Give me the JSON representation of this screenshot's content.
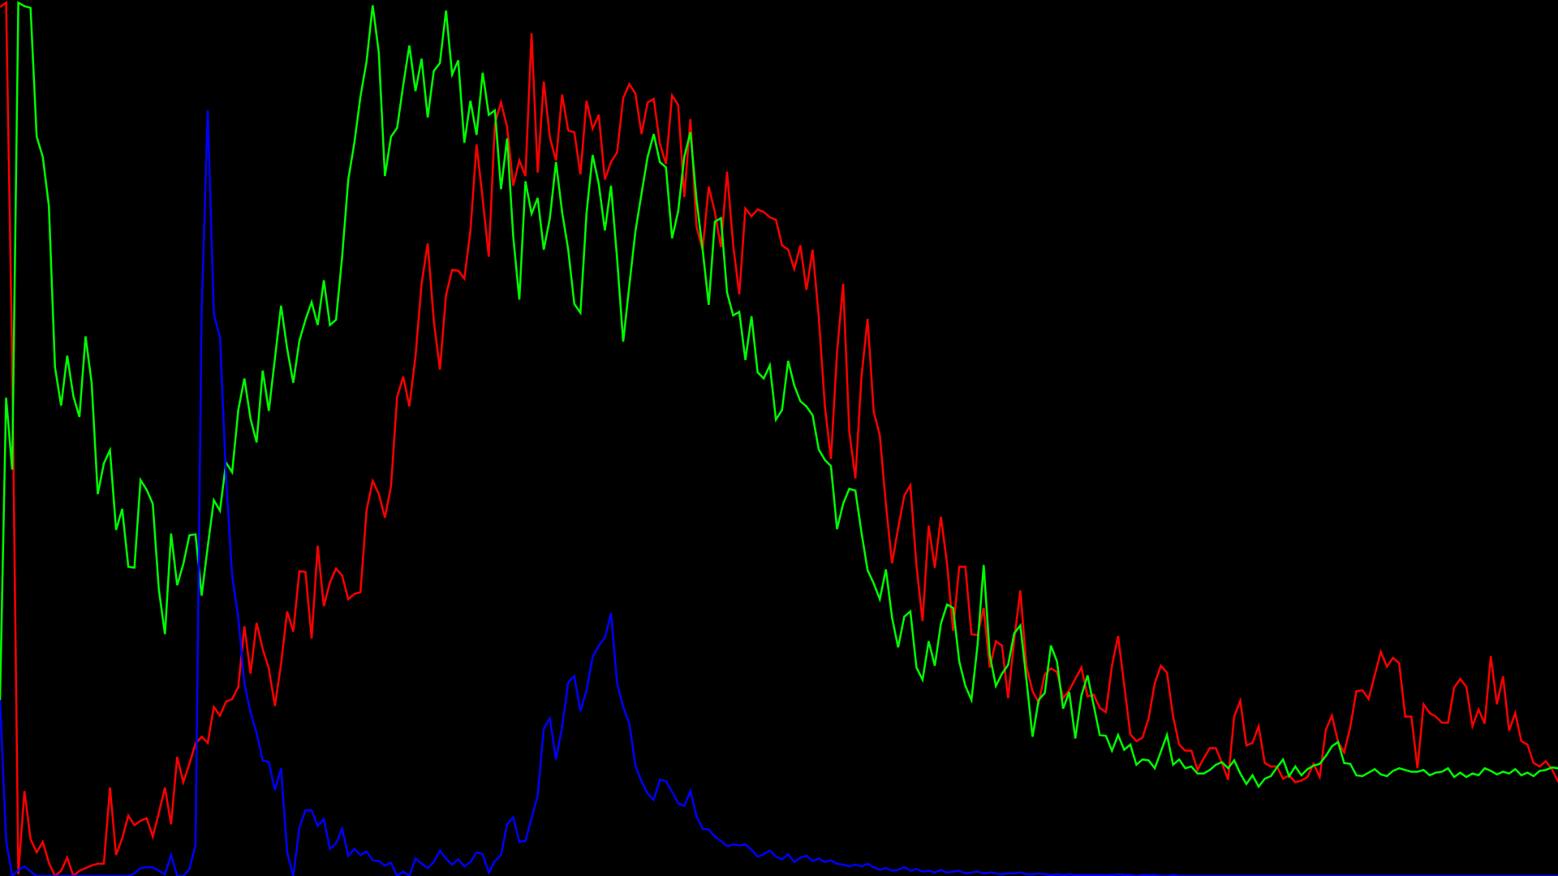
{
  "chart_data": {
    "type": "line",
    "title": "",
    "xlabel": "",
    "ylabel": "",
    "grid": false,
    "legend": "none",
    "background": "#000000",
    "xlim": [
      0,
      255
    ],
    "ylim": [
      0,
      1
    ],
    "x_step": 1,
    "series": [
      {
        "color": "#ff0000",
        "values": [
          0.992,
          0.997,
          0.588,
          0.002,
          0.097,
          0.042,
          0.027,
          0.039,
          0.015,
          0.0,
          0.006,
          0.021,
          0.0,
          0.006,
          0.009,
          0.012,
          0.014,
          0.014,
          0.101,
          0.024,
          0.043,
          0.069,
          0.058,
          0.063,
          0.066,
          0.045,
          0.072,
          0.101,
          0.059,
          0.136,
          0.107,
          0.128,
          0.151,
          0.159,
          0.152,
          0.193,
          0.183,
          0.199,
          0.202,
          0.216,
          0.285,
          0.231,
          0.289,
          0.259,
          0.237,
          0.194,
          0.242,
          0.302,
          0.279,
          0.348,
          0.347,
          0.271,
          0.377,
          0.308,
          0.335,
          0.351,
          0.343,
          0.316,
          0.322,
          0.324,
          0.418,
          0.451,
          0.436,
          0.409,
          0.445,
          0.547,
          0.57,
          0.536,
          0.593,
          0.676,
          0.722,
          0.634,
          0.578,
          0.663,
          0.692,
          0.691,
          0.682,
          0.737,
          0.835,
          0.773,
          0.707,
          0.859,
          0.883,
          0.855,
          0.788,
          0.817,
          0.799,
          0.962,
          0.803,
          0.907,
          0.843,
          0.817,
          0.892,
          0.851,
          0.849,
          0.801,
          0.885,
          0.853,
          0.869,
          0.795,
          0.815,
          0.826,
          0.888,
          0.904,
          0.893,
          0.847,
          0.883,
          0.887,
          0.836,
          0.813,
          0.891,
          0.88,
          0.775,
          0.864,
          0.741,
          0.715,
          0.787,
          0.758,
          0.718,
          0.804,
          0.72,
          0.664,
          0.762,
          0.753,
          0.761,
          0.758,
          0.752,
          0.749,
          0.72,
          0.715,
          0.693,
          0.72,
          0.669,
          0.715,
          0.639,
          0.537,
          0.476,
          0.598,
          0.676,
          0.508,
          0.454,
          0.57,
          0.636,
          0.53,
          0.503,
          0.424,
          0.357,
          0.397,
          0.434,
          0.446,
          0.354,
          0.291,
          0.4,
          0.352,
          0.41,
          0.357,
          0.28,
          0.353,
          0.353,
          0.276,
          0.275,
          0.306,
          0.238,
          0.268,
          0.263,
          0.203,
          0.27,
          0.326,
          0.239,
          0.211,
          0.198,
          0.23,
          0.237,
          0.233,
          0.203,
          0.212,
          0.225,
          0.238,
          0.205,
          0.207,
          0.192,
          0.187,
          0.24,
          0.274,
          0.218,
          0.162,
          0.154,
          0.158,
          0.18,
          0.22,
          0.24,
          0.232,
          0.182,
          0.15,
          0.143,
          0.143,
          0.121,
          0.134,
          0.146,
          0.146,
          0.129,
          0.11,
          0.182,
          0.2,
          0.149,
          0.152,
          0.171,
          0.129,
          0.125,
          0.125,
          0.111,
          0.115,
          0.107,
          0.109,
          0.113,
          0.128,
          0.113,
          0.167,
          0.183,
          0.153,
          0.141,
          0.17,
          0.211,
          0.212,
          0.202,
          0.229,
          0.256,
          0.239,
          0.249,
          0.243,
          0.182,
          0.182,
          0.123,
          0.196,
          0.186,
          0.182,
          0.175,
          0.175,
          0.215,
          0.225,
          0.216,
          0.171,
          0.19,
          0.174,
          0.251,
          0.196,
          0.228,
          0.166,
          0.186,
          0.154,
          0.15,
          0.129,
          0.125,
          0.131,
          0.122,
          0.108,
          0.102,
          0.094,
          0.098,
          0.092,
          0.101,
          0.093,
          0.085,
          0.097,
          0.111,
          0.098,
          0.127,
          0.116,
          0.118,
          0.094,
          0.115,
          0.098,
          0.128,
          0.116,
          0.116,
          0.099,
          0.124,
          0.118,
          0.115,
          0.111,
          0.106,
          0.116,
          0.098,
          0.081,
          0.085,
          0.099,
          0.106,
          0.105,
          0.082,
          0.086,
          0.08,
          0.072,
          0.079,
          0.09,
          0.081,
          0.096,
          0.089,
          0.099,
          0.096,
          0.094
        ]
      },
      {
        "color": "#00ff00",
        "values": [
          0.2,
          0.546,
          0.464,
          0.997,
          0.993,
          0.991,
          0.844,
          0.821,
          0.765,
          0.581,
          0.537,
          0.594,
          0.548,
          0.524,
          0.616,
          0.563,
          0.436,
          0.471,
          0.486,
          0.395,
          0.419,
          0.353,
          0.352,
          0.452,
          0.441,
          0.425,
          0.327,
          0.276,
          0.391,
          0.332,
          0.356,
          0.389,
          0.39,
          0.32,
          0.376,
          0.429,
          0.417,
          0.472,
          0.461,
          0.532,
          0.568,
          0.522,
          0.495,
          0.577,
          0.531,
          0.591,
          0.651,
          0.602,
          0.563,
          0.611,
          0.635,
          0.655,
          0.629,
          0.68,
          0.629,
          0.635,
          0.707,
          0.795,
          0.837,
          0.89,
          0.93,
          0.994,
          0.94,
          0.799,
          0.844,
          0.854,
          0.903,
          0.948,
          0.896,
          0.933,
          0.866,
          0.919,
          0.928,
          0.988,
          0.915,
          0.931,
          0.837,
          0.885,
          0.846,
          0.917,
          0.869,
          0.874,
          0.784,
          0.842,
          0.73,
          0.658,
          0.793,
          0.756,
          0.774,
          0.715,
          0.751,
          0.815,
          0.758,
          0.715,
          0.653,
          0.643,
          0.757,
          0.823,
          0.79,
          0.737,
          0.788,
          0.705,
          0.61,
          0.674,
          0.736,
          0.779,
          0.821,
          0.847,
          0.815,
          0.809,
          0.728,
          0.759,
          0.821,
          0.849,
          0.772,
          0.715,
          0.652,
          0.747,
          0.751,
          0.666,
          0.64,
          0.644,
          0.589,
          0.639,
          0.575,
          0.568,
          0.583,
          0.521,
          0.532,
          0.588,
          0.56,
          0.542,
          0.536,
          0.526,
          0.487,
          0.475,
          0.468,
          0.396,
          0.425,
          0.442,
          0.44,
          0.392,
          0.349,
          0.334,
          0.316,
          0.35,
          0.295,
          0.261,
          0.296,
          0.302,
          0.238,
          0.224,
          0.268,
          0.24,
          0.288,
          0.31,
          0.306,
          0.245,
          0.217,
          0.201,
          0.264,
          0.355,
          0.252,
          0.217,
          0.231,
          0.241,
          0.277,
          0.286,
          0.224,
          0.159,
          0.201,
          0.209,
          0.263,
          0.245,
          0.191,
          0.21,
          0.157,
          0.206,
          0.229,
          0.195,
          0.161,
          0.16,
          0.143,
          0.161,
          0.144,
          0.15,
          0.127,
          0.133,
          0.132,
          0.123,
          0.142,
          0.161,
          0.127,
          0.133,
          0.123,
          0.125,
          0.117,
          0.117,
          0.121,
          0.127,
          0.13,
          0.123,
          0.132,
          0.117,
          0.105,
          0.115,
          0.102,
          0.111,
          0.114,
          0.124,
          0.133,
          0.114,
          0.125,
          0.115,
          0.122,
          0.126,
          0.128,
          0.137,
          0.148,
          0.153,
          0.129,
          0.128,
          0.115,
          0.114,
          0.118,
          0.122,
          0.116,
          0.114,
          0.12,
          0.123,
          0.121,
          0.119,
          0.119,
          0.121,
          0.115,
          0.118,
          0.119,
          0.123,
          0.113,
          0.118,
          0.113,
          0.117,
          0.115,
          0.123,
          0.12,
          0.116,
          0.119,
          0.117,
          0.122,
          0.115,
          0.118,
          0.114,
          0.12,
          0.121,
          0.124,
          0.123,
          0.117,
          0.125,
          0.134,
          0.132,
          0.139,
          0.151,
          0.148,
          0.151,
          0.187,
          0.195,
          0.184,
          0.194,
          0.183,
          0.244,
          0.266,
          0.328,
          0.433,
          0.492,
          0.575,
          0.634,
          0.706,
          0.768,
          0.83,
          0.879,
          0.954,
          0.99,
          0.998,
          0.972,
          0.999,
          0.949
        ]
      },
      {
        "color": "#0000ff",
        "values": [
          0.201,
          0.04,
          0.0,
          0.007,
          0.011,
          0.005,
          0.0,
          0.0,
          0.0,
          0.0,
          0.0,
          0.0,
          0.0,
          0.0,
          0.0,
          0.0,
          0.0,
          0.0,
          0.0,
          0.0,
          0.0,
          0.0,
          0.003,
          0.009,
          0.01,
          0.01,
          0.006,
          0.002,
          0.024,
          0.0,
          0.0,
          0.008,
          0.035,
          0.643,
          0.874,
          0.641,
          0.615,
          0.455,
          0.342,
          0.295,
          0.22,
          0.187,
          0.163,
          0.132,
          0.13,
          0.098,
          0.123,
          0.027,
          0.0,
          0.055,
          0.075,
          0.075,
          0.057,
          0.065,
          0.031,
          0.037,
          0.054,
          0.023,
          0.031,
          0.024,
          0.028,
          0.018,
          0.017,
          0.012,
          0.015,
          0.0,
          0.005,
          0.0,
          0.02,
          0.014,
          0.009,
          0.016,
          0.029,
          0.02,
          0.013,
          0.019,
          0.011,
          0.016,
          0.027,
          0.025,
          0.004,
          0.017,
          0.024,
          0.059,
          0.067,
          0.039,
          0.04,
          0.066,
          0.092,
          0.168,
          0.18,
          0.133,
          0.17,
          0.221,
          0.228,
          0.188,
          0.212,
          0.25,
          0.263,
          0.272,
          0.3,
          0.22,
          0.193,
          0.174,
          0.126,
          0.108,
          0.094,
          0.087,
          0.11,
          0.108,
          0.096,
          0.083,
          0.08,
          0.097,
          0.068,
          0.054,
          0.053,
          0.045,
          0.04,
          0.034,
          0.036,
          0.035,
          0.036,
          0.03,
          0.022,
          0.025,
          0.029,
          0.022,
          0.019,
          0.025,
          0.016,
          0.021,
          0.023,
          0.017,
          0.02,
          0.016,
          0.018,
          0.014,
          0.013,
          0.011,
          0.013,
          0.011,
          0.014,
          0.01,
          0.007,
          0.009,
          0.006,
          0.007,
          0.01,
          0.006,
          0.008,
          0.005,
          0.006,
          0.004,
          0.007,
          0.004,
          0.005,
          0.006,
          0.003,
          0.004,
          0.005,
          0.003,
          0.004,
          0.003,
          0.002,
          0.003,
          0.003,
          0.004,
          0.002,
          0.002,
          0.003,
          0.002,
          0.001,
          0.002,
          0.001,
          0.002,
          0.001,
          0.001,
          0.001,
          0.001,
          0.001,
          0.001,
          0.001,
          0.002,
          0.001,
          0.001,
          0.0,
          0.001,
          0.001,
          0.001,
          0.0,
          0.0,
          0.001,
          0.0,
          0.0,
          0.0,
          0.0,
          0.0,
          0.0,
          0.0,
          0.0,
          0.0,
          0.0,
          0.0,
          0.0,
          0.0,
          0.0,
          0.0,
          0.0,
          0.0,
          0.0,
          0.0,
          0.0,
          0.0,
          0.0,
          0.0,
          0.0,
          0.0,
          0.0,
          0.0,
          0.0,
          0.0,
          0.0,
          0.0,
          0.0,
          0.0,
          0.0,
          0.0,
          0.0,
          0.0,
          0.0,
          0.0,
          0.0,
          0.0,
          0.0,
          0.0,
          0.0,
          0.0,
          0.0,
          0.0,
          0.0,
          0.0,
          0.0,
          0.0,
          0.0,
          0.0,
          0.0,
          0.0,
          0.0,
          0.0,
          0.0,
          0.0,
          0.0,
          0.0,
          0.0,
          0.0,
          0.0,
          0.0,
          0.0,
          0.0,
          0.0,
          0.0,
          0.0,
          0.0,
          0.0,
          0.0,
          0.0,
          0.0,
          0.0
        ]
      }
    ]
  }
}
